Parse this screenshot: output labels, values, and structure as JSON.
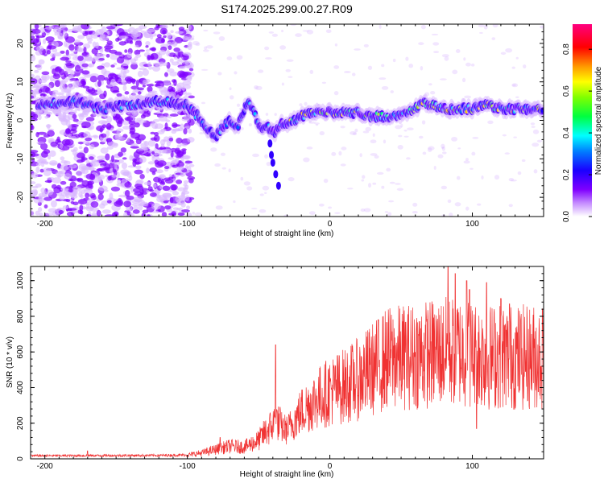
{
  "title": "S174.2025.299.00.27.R09",
  "colors": {
    "spectrum_mid": "#7f00ff",
    "spectrum_light": "#d9b8ff",
    "snr_line": "#f03232"
  },
  "chart_data": [
    {
      "type": "heatmap",
      "name": "spectrogram",
      "xlabel": "Height of straight line (km)",
      "ylabel": "Frequency (Hz)",
      "xlim": [
        -210,
        150
      ],
      "ylim": [
        -25,
        25
      ],
      "xticks": [
        -200,
        -100,
        0,
        100
      ],
      "yticks": [
        -20,
        -10,
        0,
        10,
        20
      ],
      "ridge": [
        [
          -200,
          4
        ],
        [
          -180,
          5
        ],
        [
          -160,
          3
        ],
        [
          -140,
          4
        ],
        [
          -120,
          5
        ],
        [
          -100,
          4
        ],
        [
          -95,
          2
        ],
        [
          -90,
          0
        ],
        [
          -85,
          -3
        ],
        [
          -80,
          -4
        ],
        [
          -75,
          -2
        ],
        [
          -70,
          0
        ],
        [
          -65,
          -2
        ],
        [
          -60,
          3
        ],
        [
          -57,
          5
        ],
        [
          -53,
          2
        ],
        [
          -50,
          -1
        ],
        [
          -46,
          -2
        ],
        [
          -42,
          -2
        ],
        [
          -38,
          -3
        ],
        [
          -35,
          -1
        ],
        [
          -30,
          -1
        ],
        [
          -25,
          0
        ],
        [
          -20,
          1
        ],
        [
          -10,
          2
        ],
        [
          0,
          2
        ],
        [
          10,
          2
        ],
        [
          20,
          2
        ],
        [
          30,
          1
        ],
        [
          40,
          1
        ],
        [
          50,
          1
        ],
        [
          60,
          3
        ],
        [
          65,
          5
        ],
        [
          70,
          4
        ],
        [
          80,
          3
        ],
        [
          90,
          3
        ],
        [
          100,
          3
        ],
        [
          110,
          4
        ],
        [
          120,
          3
        ],
        [
          130,
          3
        ],
        [
          140,
          3
        ],
        [
          150,
          3
        ]
      ],
      "branch": [
        [
          -42,
          -6
        ],
        [
          -41,
          -9
        ],
        [
          -40,
          -11
        ],
        [
          -38,
          -14
        ],
        [
          -36,
          -17
        ]
      ],
      "colorbar": {
        "label": "Normalized spectral amplitude",
        "ticks": [
          "0.0",
          "0.2",
          "0.4",
          "0.6",
          "0.8"
        ],
        "range": [
          0,
          0.92
        ]
      }
    },
    {
      "type": "line",
      "name": "snr",
      "xlabel": "Height of straight line (km)",
      "ylabel": "SNR (10 * v/v)",
      "xlim": [
        -210,
        150
      ],
      "ylim": [
        0,
        1080
      ],
      "xticks": [
        -200,
        -100,
        0,
        100
      ],
      "yticks": [
        0,
        200,
        400,
        600,
        800,
        1000
      ],
      "series": [
        {
          "name": "SNR",
          "envelope": [
            [
              -210,
              18
            ],
            [
              -120,
              20
            ],
            [
              -100,
              22
            ],
            [
              -90,
              35
            ],
            [
              -80,
              55
            ],
            [
              -70,
              75
            ],
            [
              -60,
              70
            ],
            [
              -50,
              110
            ],
            [
              -45,
              160
            ],
            [
              -40,
              200
            ],
            [
              -38,
              240
            ],
            [
              -35,
              190
            ],
            [
              -30,
              170
            ],
            [
              -20,
              280
            ],
            [
              -10,
              350
            ],
            [
              0,
              400
            ],
            [
              10,
              430
            ],
            [
              20,
              470
            ],
            [
              30,
              530
            ],
            [
              40,
              590
            ],
            [
              50,
              600
            ],
            [
              60,
              610
            ],
            [
              70,
              620
            ],
            [
              80,
              630
            ],
            [
              90,
              640
            ],
            [
              100,
              620
            ],
            [
              110,
              600
            ],
            [
              120,
              610
            ],
            [
              130,
              600
            ],
            [
              140,
              600
            ],
            [
              150,
              610
            ]
          ],
          "peaks": [
            [
              -170,
              45
            ],
            [
              -77,
              120
            ],
            [
              -38,
              640
            ],
            [
              -35,
              290
            ],
            [
              83,
              1080
            ],
            [
              88,
              1040
            ],
            [
              96,
              1000
            ],
            [
              98,
              950
            ],
            [
              110,
              990
            ],
            [
              120,
              900
            ],
            [
              126,
              870
            ],
            [
              103,
              170
            ]
          ]
        }
      ]
    }
  ]
}
